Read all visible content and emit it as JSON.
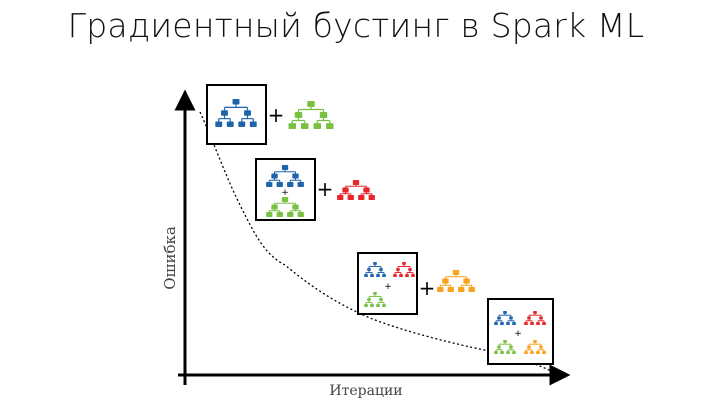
{
  "slide": {
    "title": "Градиентный бустинг в Spark ML"
  },
  "diagram": {
    "ylabel": "Ошибка",
    "xlabel": "Итерации",
    "plus_sign": "+",
    "colors": {
      "axis": "#000000",
      "curve": "#000000",
      "frame": "#000000",
      "tree_blue": "#1f63ad",
      "tree_green": "#7ac143",
      "tree_red": "#e8262b",
      "tree_orange": "#f7a21b"
    },
    "stages": [
      {
        "ensemble": [
          "blue"
        ],
        "added_tree": "green"
      },
      {
        "ensemble": [
          "blue",
          "green"
        ],
        "added_tree": "red"
      },
      {
        "ensemble": [
          "blue",
          "red",
          "green"
        ],
        "added_tree": "orange"
      },
      {
        "ensemble": [
          "blue",
          "red",
          "green",
          "orange"
        ],
        "added_tree": null
      }
    ]
  }
}
